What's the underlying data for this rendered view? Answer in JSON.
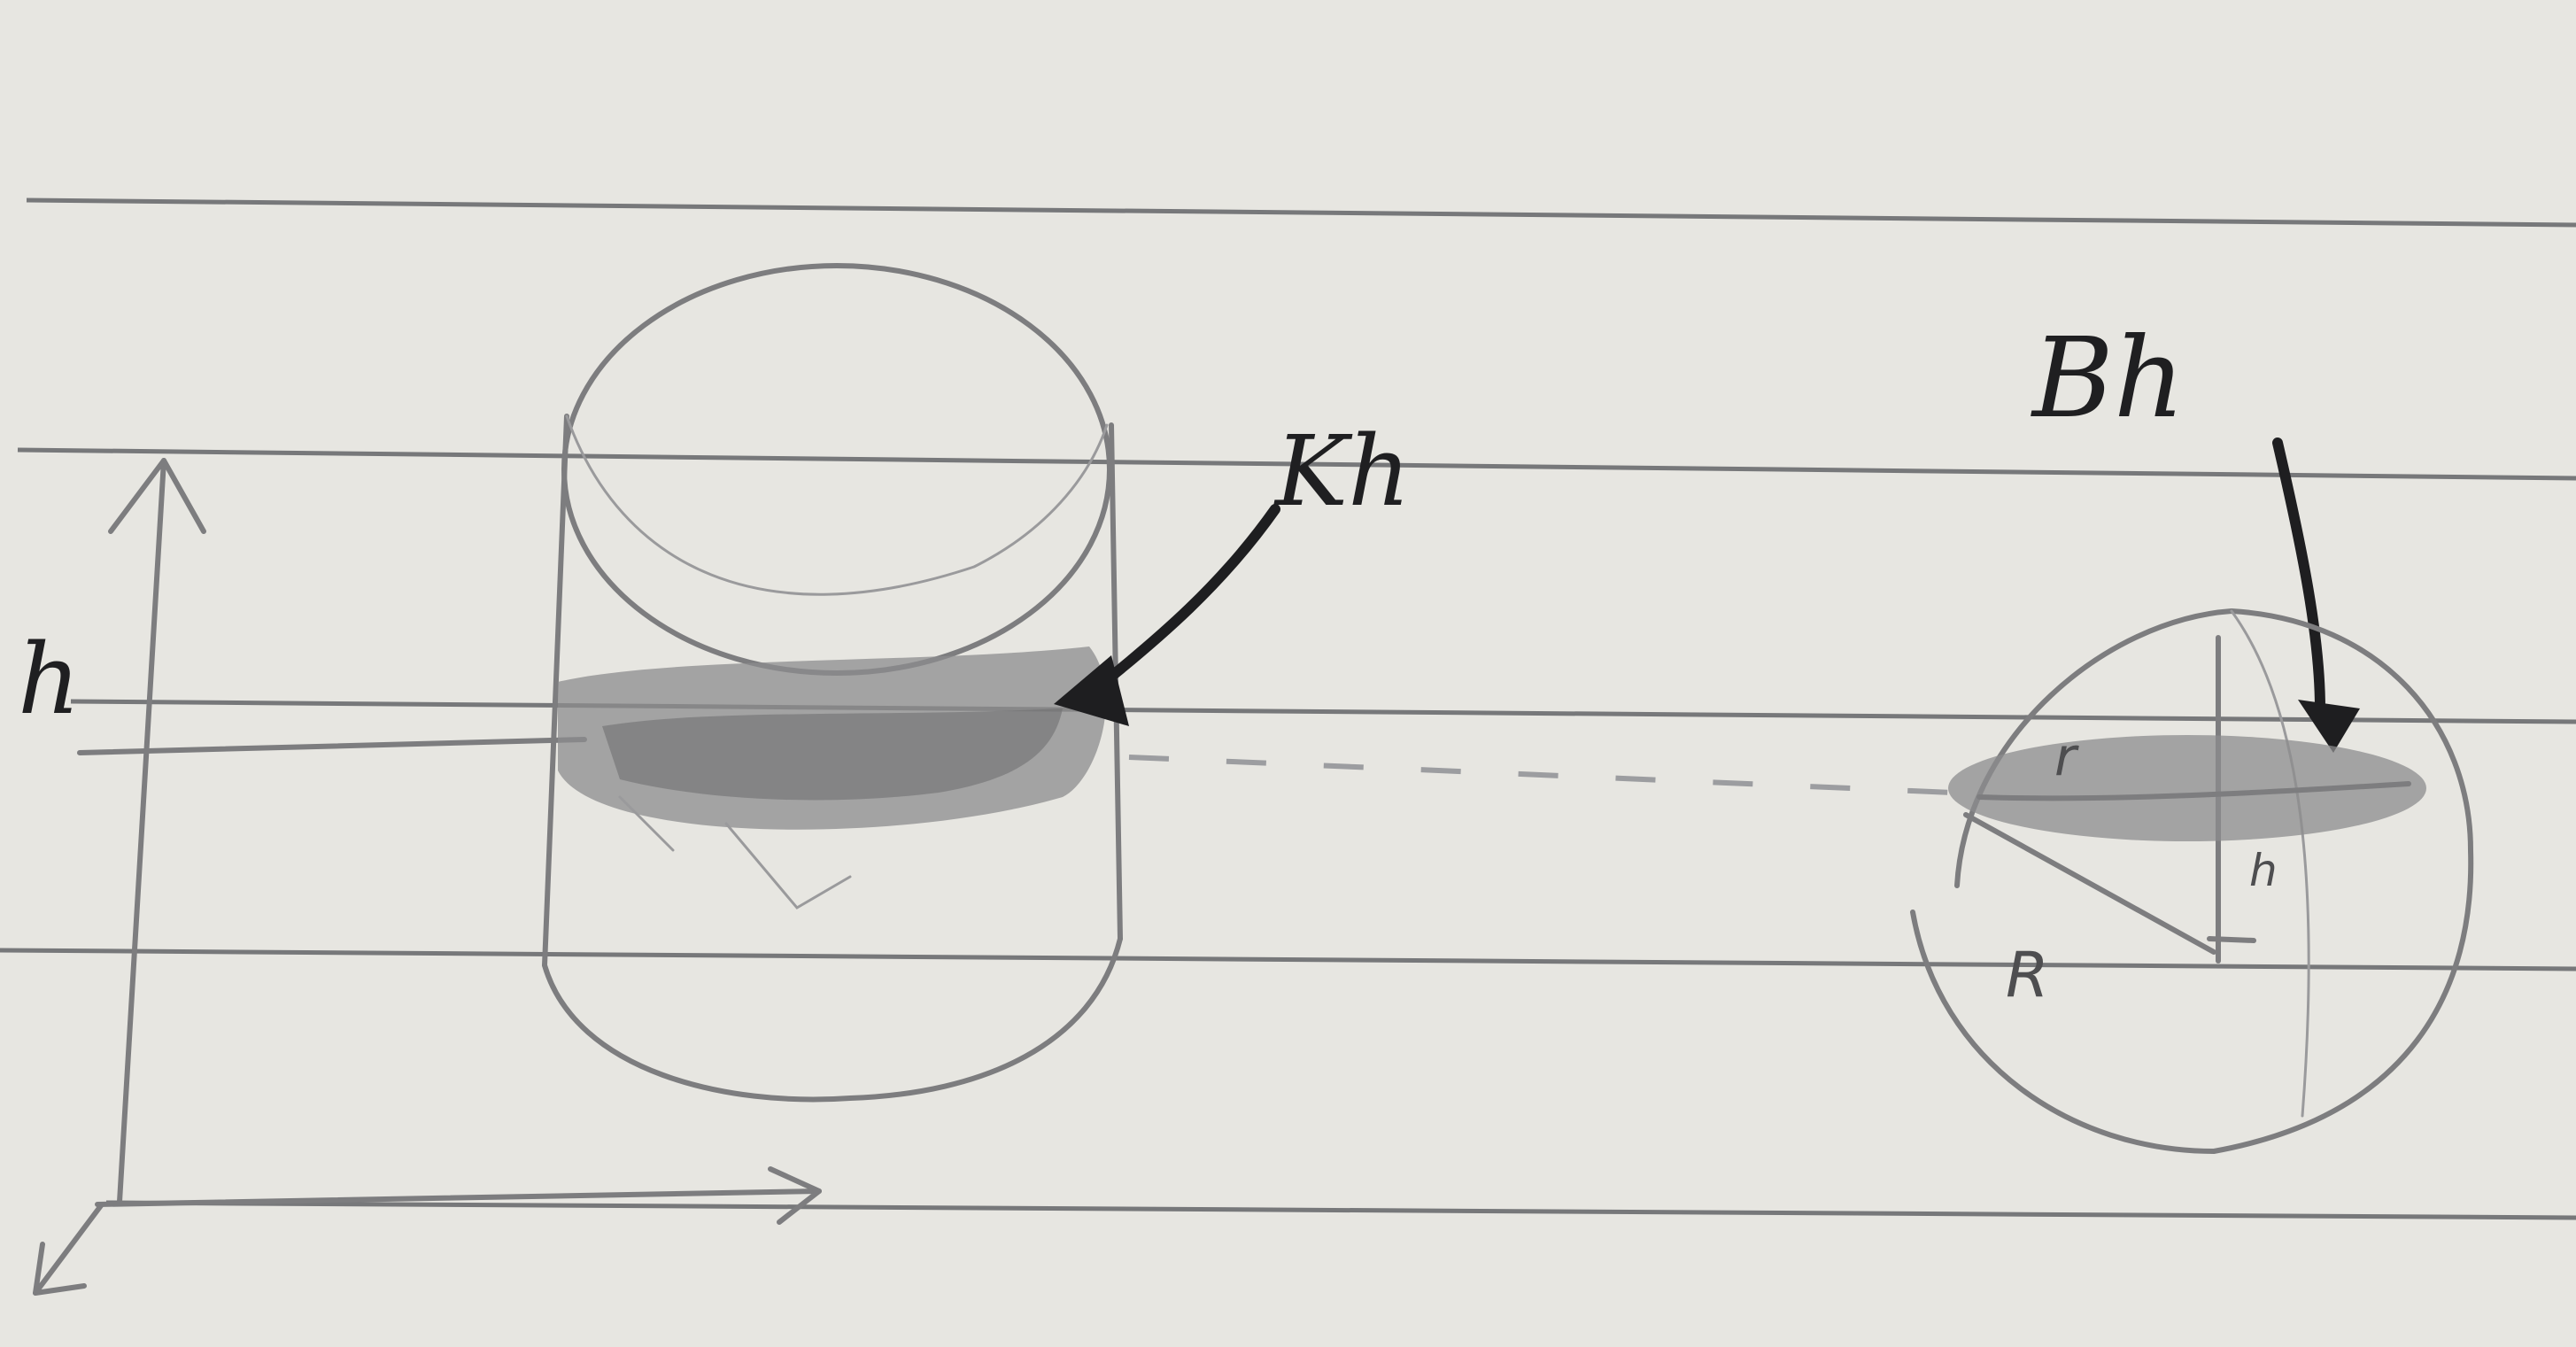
{
  "labels": {
    "h_axis": "h",
    "cylinder_section": "Kh",
    "ball_section": "Bh",
    "radius": "R",
    "height_in_ball": "h",
    "section_radius": "r"
  },
  "colors": {
    "paper": "#e7e6e1",
    "rule_lines": "#77787a",
    "pencil": "#7d7d7f",
    "shading": "#8c8c8e",
    "ink": "#1e1e20"
  }
}
